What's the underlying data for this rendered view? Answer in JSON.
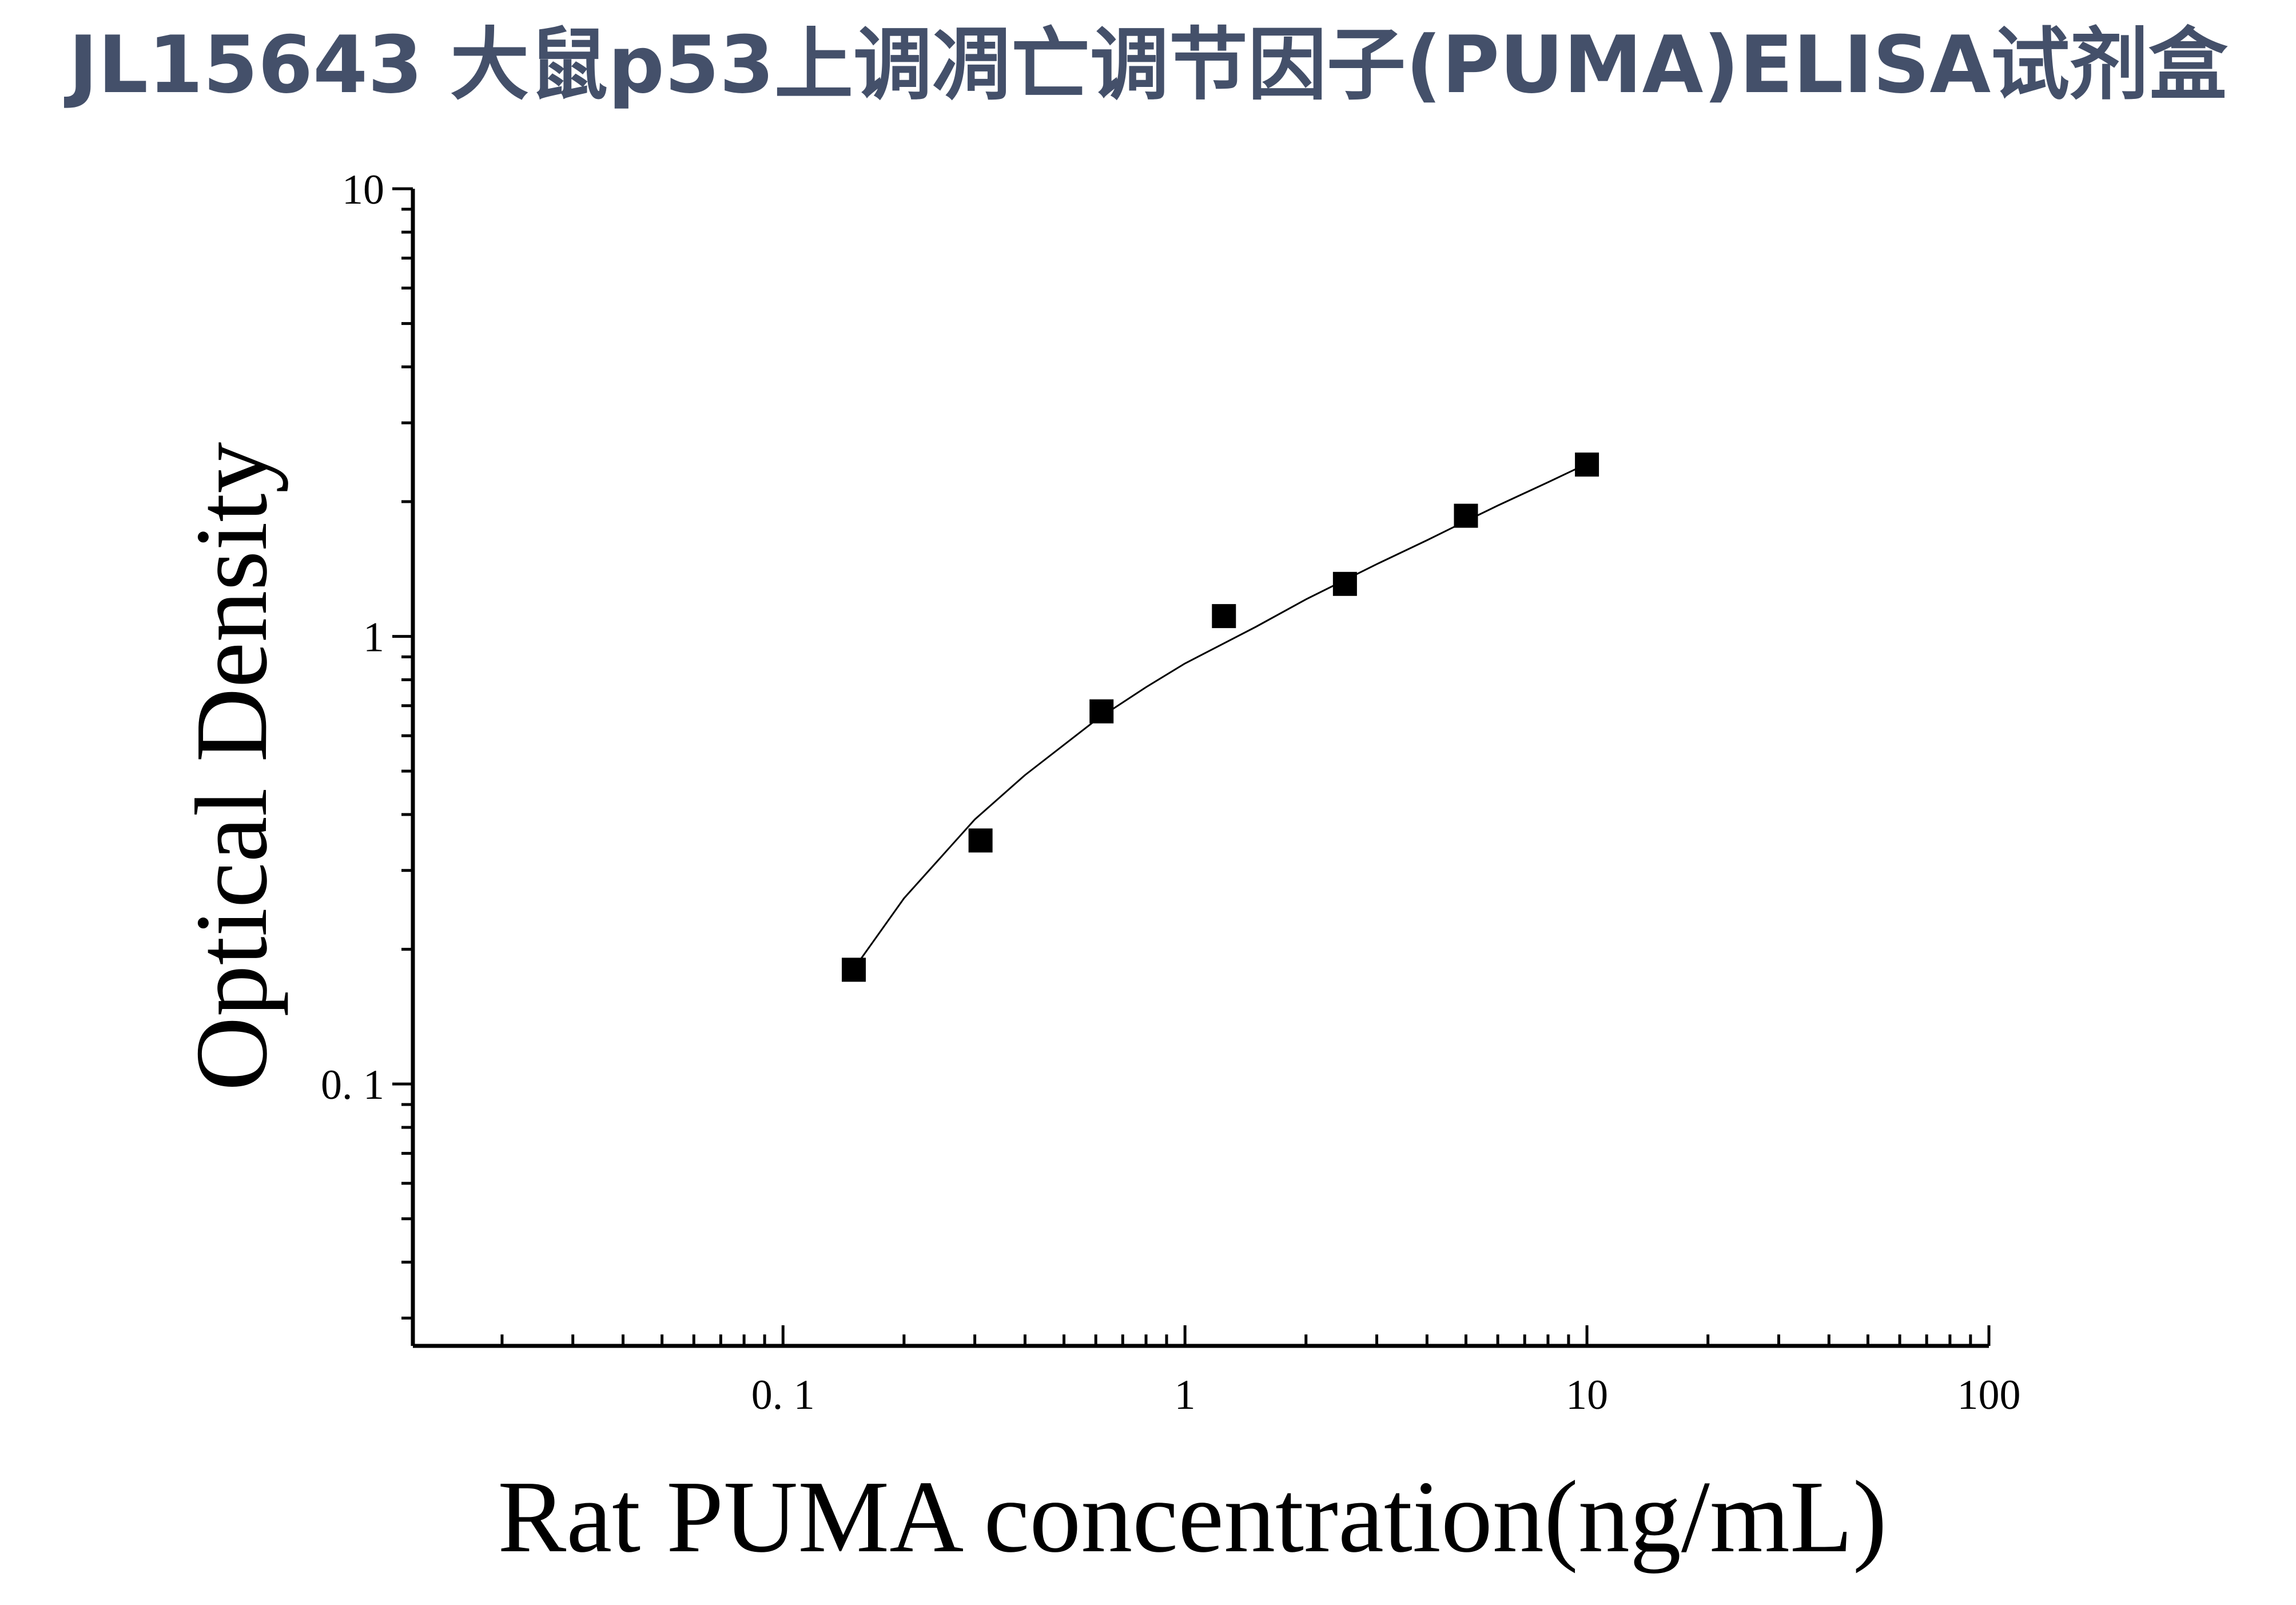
{
  "page": {
    "title": "JL15643 大鼠p53上调凋亡调节因子(PUMA)ELISA试剂盒"
  },
  "chart_data": {
    "type": "scatter",
    "title": "JL15643 大鼠p53上调凋亡调节因子(PUMA)ELISA试剂盒",
    "xlabel": "Rat PUMA concentration(ng/mL)",
    "ylabel": "Optical Density",
    "x_scale": "log",
    "y_scale": "log",
    "xlim": [
      0.012,
      100
    ],
    "ylim": [
      0.026,
      10
    ],
    "x_ticks": [
      {
        "value": 0.1,
        "label": "0. 1"
      },
      {
        "value": 1,
        "label": "1"
      },
      {
        "value": 10,
        "label": "10"
      },
      {
        "value": 100,
        "label": "100"
      }
    ],
    "y_ticks": [
      {
        "value": 0.1,
        "label": "0. 1"
      },
      {
        "value": 1,
        "label": "1"
      },
      {
        "value": 10,
        "label": "10"
      }
    ],
    "grid": false,
    "legend": "none",
    "series": [
      {
        "marker": "square",
        "color": "#000000",
        "x": [
          0.15,
          0.31,
          0.62,
          1.25,
          2.5,
          5,
          10
        ],
        "y": [
          0.18,
          0.35,
          0.68,
          1.11,
          1.31,
          1.86,
          2.42
        ]
      }
    ],
    "fit_curve": {
      "style": "solid",
      "color": "#000000",
      "x": [
        0.156,
        0.2,
        0.3,
        0.4,
        0.6,
        0.8,
        1.0,
        1.5,
        2.0,
        3.0,
        4.0,
        5.0,
        6.0,
        8.0,
        10.0
      ],
      "y": [
        0.19,
        0.26,
        0.39,
        0.49,
        0.65,
        0.77,
        0.87,
        1.05,
        1.21,
        1.45,
        1.64,
        1.81,
        1.96,
        2.21,
        2.43
      ]
    }
  }
}
